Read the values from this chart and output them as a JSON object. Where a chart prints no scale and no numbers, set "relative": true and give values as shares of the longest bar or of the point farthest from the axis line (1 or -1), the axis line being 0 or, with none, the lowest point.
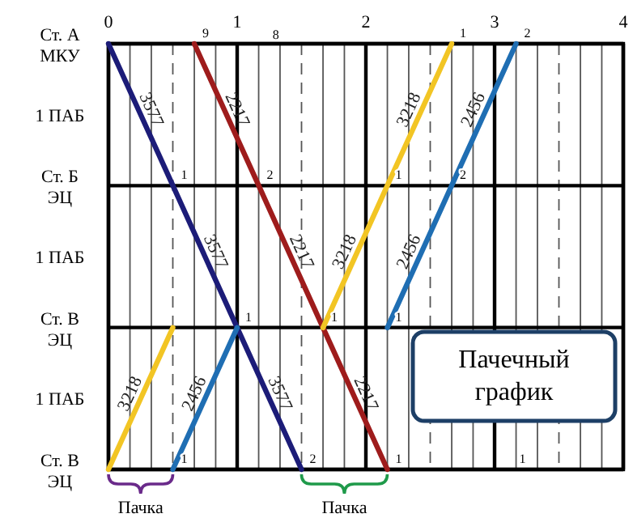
{
  "chart_data": {
    "type": "line",
    "relative": true,
    "xlim": [
      0,
      4
    ],
    "xticks": [
      0,
      {
        "value": 0.167,
        "label": null
      },
      {
        "value": 0.333,
        "label": null
      },
      {
        "value": 0.5,
        "label": null
      },
      {
        "value": 0.667,
        "label": null
      },
      {
        "value": 0.833,
        "label": null
      },
      1,
      {
        "value": 1.167,
        "label": null
      },
      {
        "value": 1.333,
        "label": null
      },
      {
        "value": 1.5,
        "label": null
      },
      {
        "value": 1.667,
        "label": null
      },
      {
        "value": 1.833,
        "label": null
      },
      2,
      {
        "value": 2.167,
        "label": null
      },
      {
        "value": 2.333,
        "label": null
      },
      {
        "value": 2.5,
        "label": null
      },
      {
        "value": 2.667,
        "label": null
      },
      {
        "value": 2.833,
        "label": null
      },
      3,
      {
        "value": 3.167,
        "label": null
      },
      {
        "value": 3.333,
        "label": null
      },
      {
        "value": 3.5,
        "label": null
      },
      {
        "value": 3.667,
        "label": null
      },
      {
        "value": 3.833,
        "label": null
      },
      4
    ],
    "grid": true,
    "line_style": "solid",
    "marker": "none",
    "series": [
      {
        "name": "3577",
        "color": "#1c1c78",
        "x": [
          0,
          0.5,
          1.0,
          1.5
        ],
        "values": [
          1,
          0.667,
          0.333,
          0
        ]
      },
      {
        "name": "2217",
        "color": "#9e1c1c",
        "x": [
          0.667,
          1.167,
          1.667,
          2.167
        ],
        "values": [
          1,
          0.667,
          0.333,
          0
        ]
      },
      {
        "name": "3218",
        "color": "#f2c524",
        "x": [
          0,
          0.5,
          1.0,
          1.667,
          2.167,
          2.667
        ],
        "values": [
          0,
          0.333,
          null,
          0.333,
          0.667,
          1
        ]
      },
      {
        "name": "2456",
        "color": "#1f6eb3",
        "x": [
          0.5,
          1.0,
          1.5,
          2.167,
          2.667,
          3.167
        ],
        "values": [
          0,
          0.333,
          null,
          0.333,
          0.667,
          1
        ]
      }
    ],
    "annotations": [
      "Ст. А МКУ",
      "1 ПАБ",
      "Ст. Б ЭЦ",
      "1 ПАБ",
      "Ст. В ЭЦ",
      "1 ПАБ",
      "Ст. В ЭЦ",
      "Пачечный график",
      "8",
      "1",
      "Пачка",
      "Пачка",
      {
        "text": "9",
        "x": 0.667,
        "y": 1
      },
      {
        "text": "1",
        "x": 2.667,
        "y": 1
      },
      {
        "text": "2",
        "x": 3.167,
        "y": 1
      },
      {
        "text": "1",
        "x": 0.5,
        "y": 0.667
      },
      {
        "text": "2",
        "x": 1.167,
        "y": 0.667
      },
      {
        "text": "1",
        "x": 2.167,
        "y": 0.667
      },
      {
        "text": "2",
        "x": 2.667,
        "y": 0.667
      },
      {
        "text": "1",
        "x": 1.0,
        "y": 0.333
      },
      {
        "text": "1",
        "x": 1.667,
        "y": 0.333
      },
      {
        "text": "1",
        "x": 2.167,
        "y": 0.333
      },
      {
        "text": "1",
        "x": 0.5,
        "y": 0
      },
      {
        "text": "2",
        "x": 1.5,
        "y": 0
      },
      {
        "text": "1",
        "x": 2.167,
        "y": 0
      }
    ]
  }
}
